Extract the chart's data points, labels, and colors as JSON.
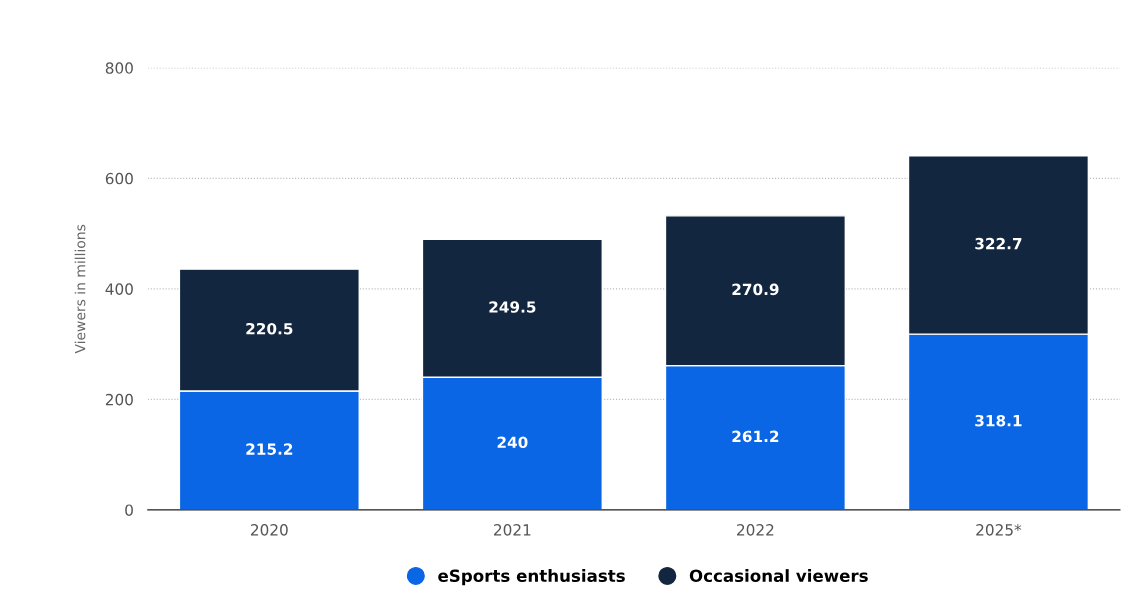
{
  "chart_data": {
    "type": "bar",
    "stacked": true,
    "ylabel": "Viewers in millions",
    "categories": [
      "2020",
      "2021",
      "2022",
      "2025*"
    ],
    "series": [
      {
        "name": "eSports enthusiasts",
        "color": "#0a66e4",
        "values": [
          215.2,
          240,
          261.2,
          318.1
        ]
      },
      {
        "name": "Occasional viewers",
        "color": "#13263f",
        "values": [
          220.5,
          249.5,
          270.9,
          322.7
        ]
      }
    ],
    "ylim": [
      0,
      800
    ],
    "yticks": [
      0,
      200,
      400,
      600,
      800
    ],
    "grid": "y",
    "legend": "bottom",
    "data_labels": true
  }
}
